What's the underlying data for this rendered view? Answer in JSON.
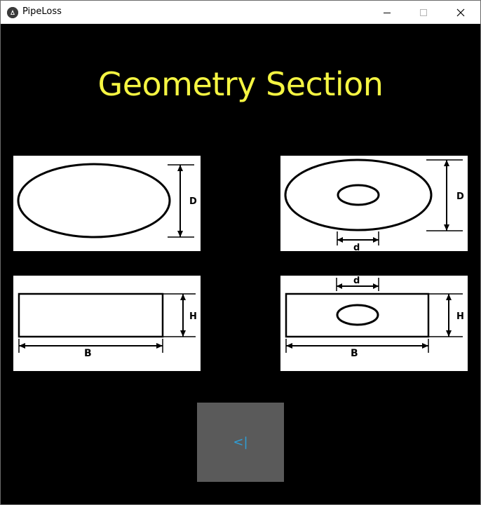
{
  "window": {
    "title": "PipeLoss",
    "app_icon": "kivy-icon",
    "minimize_icon": "minimize-icon",
    "maximize_icon": "maximize-icon",
    "close_icon": "close-icon"
  },
  "main": {
    "heading": "Geometry Section",
    "sections": [
      {
        "id": "circular",
        "dims": {
          "height": "D"
        }
      },
      {
        "id": "annular",
        "dims": {
          "height": "D",
          "hole": "d"
        }
      },
      {
        "id": "rectangular",
        "dims": {
          "height": "H",
          "width": "B"
        }
      },
      {
        "id": "rectangular-hole",
        "dims": {
          "height": "H",
          "width": "B",
          "hole": "d"
        }
      }
    ],
    "back_button": {
      "label": "<|"
    }
  },
  "colors": {
    "background": "#000000",
    "heading": "#f5f542",
    "button_bg": "#5a5a5a",
    "button_text": "#2e9fd8"
  }
}
